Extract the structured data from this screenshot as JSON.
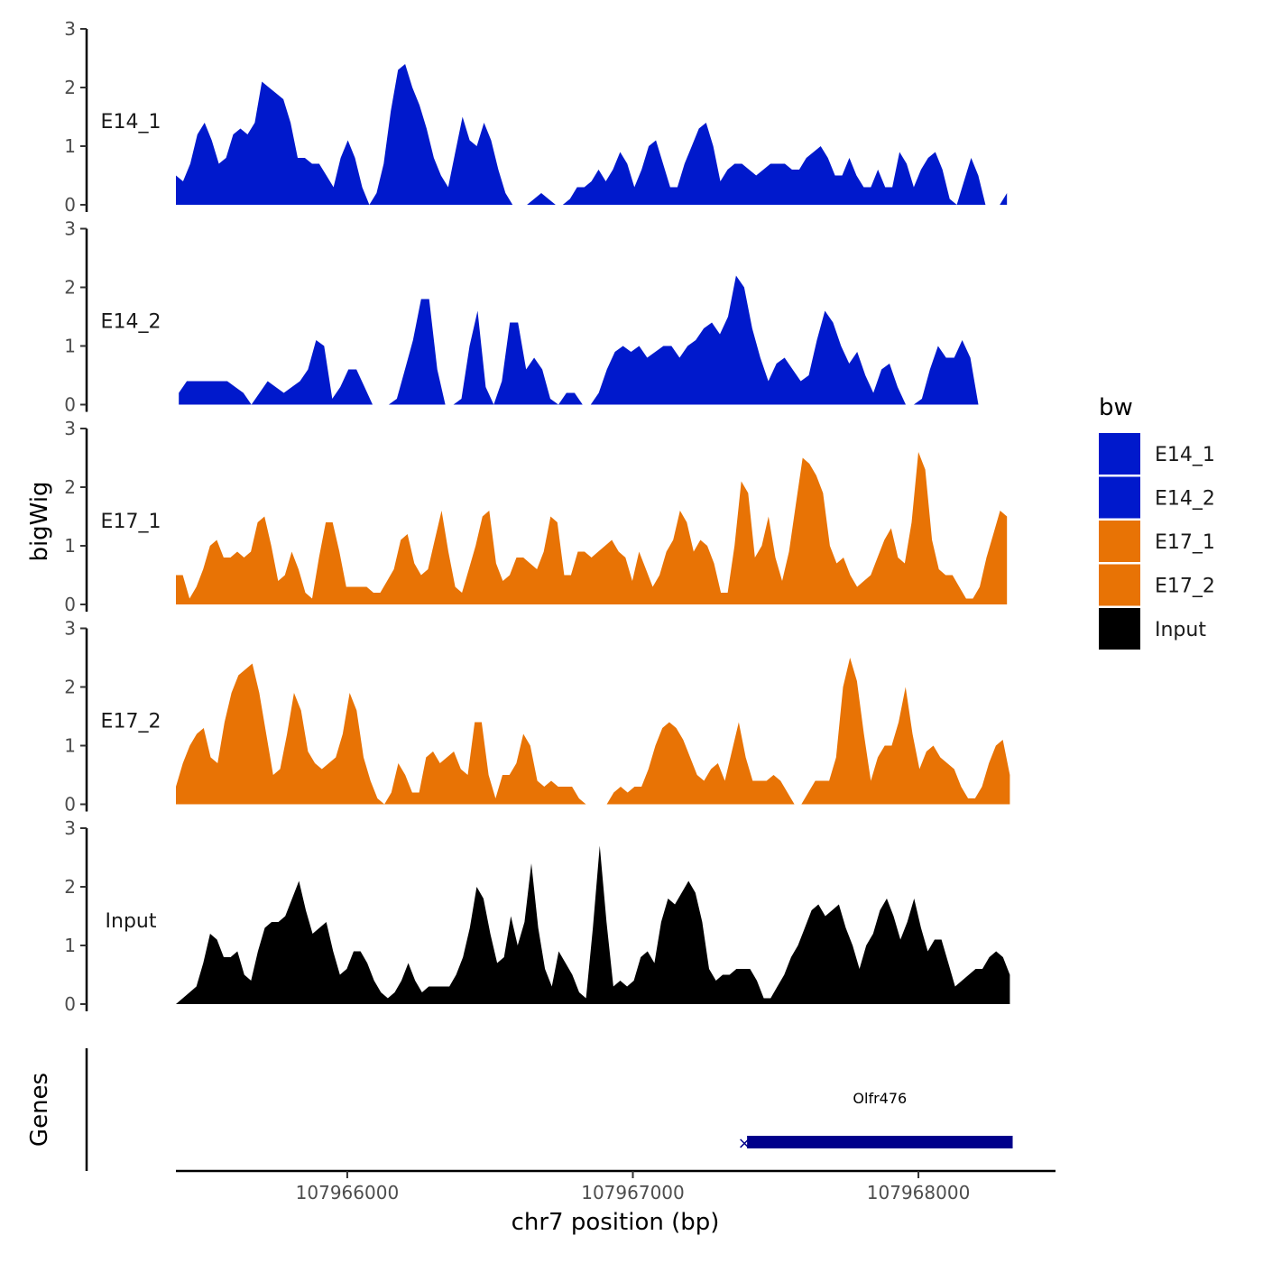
{
  "chart_data": {
    "type": "area",
    "ylabel": "bigWig",
    "xlabel": "chr7 position (bp)",
    "genes_label": "Genes",
    "xlim": [
      107965400,
      107968480
    ],
    "x_ticks": [
      107966000,
      107967000,
      107968000
    ],
    "x_tick_labels": [
      "107966000",
      "107967000",
      "107968000"
    ],
    "ylim": [
      0,
      3
    ],
    "y_ticks": [
      0,
      1,
      2,
      3
    ],
    "y_tick_labels": [
      "0",
      "1",
      "2",
      "3"
    ],
    "legend": {
      "title": "bw",
      "entries": [
        {
          "label": "E14_1",
          "color": "#0019CC"
        },
        {
          "label": "E14_2",
          "color": "#0019CC"
        },
        {
          "label": "E17_1",
          "color": "#E87305"
        },
        {
          "label": "E17_2",
          "color": "#E87305"
        },
        {
          "label": "Input",
          "color": "#000000"
        }
      ]
    },
    "series": [
      {
        "name": "E14_1",
        "color": "#0019CC",
        "x_start": 107965400,
        "x_end": 107968310,
        "values": [
          0.5,
          0.4,
          0.7,
          1.2,
          1.4,
          1.1,
          0.7,
          0.8,
          1.2,
          1.3,
          1.2,
          1.4,
          2.1,
          2.0,
          1.9,
          1.8,
          1.4,
          0.8,
          0.8,
          0.7,
          0.7,
          0.5,
          0.3,
          0.8,
          1.1,
          0.8,
          0.3,
          0.0,
          0.2,
          0.7,
          1.6,
          2.3,
          2.4,
          2.0,
          1.7,
          1.3,
          0.8,
          0.5,
          0.3,
          0.9,
          1.5,
          1.1,
          1.0,
          1.4,
          1.1,
          0.6,
          0.2,
          0.0,
          0.0,
          0.0,
          0.1,
          0.2,
          0.1,
          0.0,
          0.0,
          0.1,
          0.3,
          0.3,
          0.4,
          0.6,
          0.4,
          0.6,
          0.9,
          0.7,
          0.3,
          0.6,
          1.0,
          1.1,
          0.7,
          0.3,
          0.3,
          0.7,
          1.0,
          1.3,
          1.4,
          1.0,
          0.4,
          0.6,
          0.7,
          0.7,
          0.6,
          0.5,
          0.6,
          0.7,
          0.7,
          0.7,
          0.6,
          0.6,
          0.8,
          0.9,
          1.0,
          0.8,
          0.5,
          0.5,
          0.8,
          0.5,
          0.3,
          0.3,
          0.6,
          0.3,
          0.3,
          0.9,
          0.7,
          0.3,
          0.6,
          0.8,
          0.9,
          0.6,
          0.1,
          0.0,
          0.4,
          0.8,
          0.5,
          0.0,
          0.0,
          0.0,
          0.2
        ]
      },
      {
        "name": "E14_2",
        "color": "#0019CC",
        "x_start": 107965410,
        "x_end": 107968210,
        "values": [
          0.2,
          0.4,
          0.4,
          0.4,
          0.4,
          0.4,
          0.4,
          0.3,
          0.2,
          0.0,
          0.2,
          0.4,
          0.3,
          0.2,
          0.3,
          0.4,
          0.6,
          1.1,
          1.0,
          0.1,
          0.3,
          0.6,
          0.6,
          0.3,
          0.0,
          0.0,
          0.0,
          0.1,
          0.6,
          1.1,
          1.8,
          1.8,
          0.6,
          0.0,
          0.0,
          0.1,
          1.0,
          1.6,
          0.3,
          0.0,
          0.4,
          1.4,
          1.4,
          0.6,
          0.8,
          0.6,
          0.1,
          0.0,
          0.2,
          0.2,
          0.0,
          0.0,
          0.2,
          0.6,
          0.9,
          1.0,
          0.9,
          1.0,
          0.8,
          0.9,
          1.0,
          1.0,
          0.8,
          1.0,
          1.1,
          1.3,
          1.4,
          1.2,
          1.5,
          2.2,
          2.0,
          1.3,
          0.8,
          0.4,
          0.7,
          0.8,
          0.6,
          0.4,
          0.5,
          1.1,
          1.6,
          1.4,
          1.0,
          0.7,
          0.9,
          0.5,
          0.2,
          0.6,
          0.7,
          0.3,
          0.0,
          0.0,
          0.1,
          0.6,
          1.0,
          0.8,
          0.8,
          1.1,
          0.8,
          0.0
        ]
      },
      {
        "name": "E17_1",
        "color": "#E87305",
        "x_start": 107965400,
        "x_end": 107968310,
        "values": [
          0.5,
          0.5,
          0.1,
          0.3,
          0.6,
          1.0,
          1.1,
          0.8,
          0.8,
          0.9,
          0.8,
          0.9,
          1.4,
          1.5,
          1.0,
          0.4,
          0.5,
          0.9,
          0.6,
          0.2,
          0.1,
          0.8,
          1.4,
          1.4,
          0.9,
          0.3,
          0.3,
          0.3,
          0.3,
          0.2,
          0.2,
          0.4,
          0.6,
          1.1,
          1.2,
          0.7,
          0.5,
          0.6,
          1.1,
          1.6,
          0.9,
          0.3,
          0.2,
          0.6,
          1.0,
          1.5,
          1.6,
          0.7,
          0.4,
          0.5,
          0.8,
          0.8,
          0.7,
          0.6,
          0.9,
          1.5,
          1.4,
          0.5,
          0.5,
          0.9,
          0.9,
          0.8,
          0.9,
          1.0,
          1.1,
          0.9,
          0.8,
          0.4,
          0.9,
          0.6,
          0.3,
          0.5,
          0.9,
          1.1,
          1.6,
          1.4,
          0.9,
          1.1,
          1.0,
          0.7,
          0.2,
          0.2,
          1.0,
          2.1,
          1.9,
          0.8,
          1.0,
          1.5,
          0.8,
          0.4,
          0.9,
          1.7,
          2.5,
          2.4,
          2.2,
          1.9,
          1.0,
          0.7,
          0.8,
          0.5,
          0.3,
          0.4,
          0.5,
          0.8,
          1.1,
          1.3,
          0.8,
          0.7,
          1.4,
          2.6,
          2.3,
          1.1,
          0.6,
          0.5,
          0.5,
          0.3,
          0.1,
          0.1,
          0.3,
          0.8,
          1.2,
          1.6,
          1.5
        ]
      },
      {
        "name": "E17_2",
        "color": "#E87305",
        "x_start": 107965400,
        "x_end": 107968320,
        "values": [
          0.3,
          0.7,
          1.0,
          1.2,
          1.3,
          0.8,
          0.7,
          1.4,
          1.9,
          2.2,
          2.3,
          2.4,
          1.9,
          1.2,
          0.5,
          0.6,
          1.2,
          1.9,
          1.6,
          0.9,
          0.7,
          0.6,
          0.7,
          0.8,
          1.2,
          1.9,
          1.6,
          0.8,
          0.4,
          0.1,
          0.0,
          0.2,
          0.7,
          0.5,
          0.2,
          0.2,
          0.8,
          0.9,
          0.7,
          0.8,
          0.9,
          0.6,
          0.5,
          1.4,
          1.4,
          0.5,
          0.1,
          0.5,
          0.5,
          0.7,
          1.2,
          1.0,
          0.4,
          0.3,
          0.4,
          0.3,
          0.3,
          0.3,
          0.1,
          0.0,
          0.0,
          0.0,
          0.0,
          0.2,
          0.3,
          0.2,
          0.3,
          0.3,
          0.6,
          1.0,
          1.3,
          1.4,
          1.3,
          1.1,
          0.8,
          0.5,
          0.4,
          0.6,
          0.7,
          0.4,
          0.9,
          1.4,
          0.8,
          0.4,
          0.4,
          0.4,
          0.5,
          0.4,
          0.2,
          0.0,
          0.0,
          0.2,
          0.4,
          0.4,
          0.4,
          0.8,
          2.0,
          2.5,
          2.1,
          1.2,
          0.4,
          0.8,
          1.0,
          1.0,
          1.4,
          2.0,
          1.2,
          0.6,
          0.9,
          1.0,
          0.8,
          0.7,
          0.6,
          0.3,
          0.1,
          0.1,
          0.3,
          0.7,
          1.0,
          1.1,
          0.5
        ]
      },
      {
        "name": "Input",
        "color": "#000000",
        "x_start": 107965400,
        "x_end": 107968320,
        "values": [
          0.0,
          0.1,
          0.2,
          0.3,
          0.7,
          1.2,
          1.1,
          0.8,
          0.8,
          0.9,
          0.5,
          0.4,
          0.9,
          1.3,
          1.4,
          1.4,
          1.5,
          1.8,
          2.1,
          1.6,
          1.2,
          1.3,
          1.4,
          0.9,
          0.5,
          0.6,
          0.9,
          0.9,
          0.7,
          0.4,
          0.2,
          0.1,
          0.2,
          0.4,
          0.7,
          0.4,
          0.2,
          0.3,
          0.3,
          0.3,
          0.3,
          0.5,
          0.8,
          1.3,
          2.0,
          1.8,
          1.2,
          0.7,
          0.8,
          1.5,
          1.0,
          1.4,
          2.4,
          1.3,
          0.6,
          0.3,
          0.9,
          0.7,
          0.5,
          0.2,
          0.1,
          1.3,
          2.7,
          1.4,
          0.3,
          0.4,
          0.3,
          0.4,
          0.8,
          0.9,
          0.7,
          1.4,
          1.8,
          1.7,
          1.9,
          2.1,
          1.9,
          1.4,
          0.6,
          0.4,
          0.5,
          0.5,
          0.6,
          0.6,
          0.6,
          0.4,
          0.1,
          0.1,
          0.3,
          0.5,
          0.8,
          1.0,
          1.3,
          1.6,
          1.7,
          1.5,
          1.6,
          1.7,
          1.3,
          1.0,
          0.6,
          1.0,
          1.2,
          1.6,
          1.8,
          1.5,
          1.1,
          1.4,
          1.8,
          1.3,
          0.9,
          1.1,
          1.1,
          0.7,
          0.3,
          0.4,
          0.5,
          0.6,
          0.6,
          0.8,
          0.9,
          0.8,
          0.5
        ]
      }
    ],
    "gene_track": {
      "gene_name": "Olfr476",
      "start": 107967400,
      "end": 107968330,
      "strand": "-",
      "color": "#00008B"
    }
  }
}
